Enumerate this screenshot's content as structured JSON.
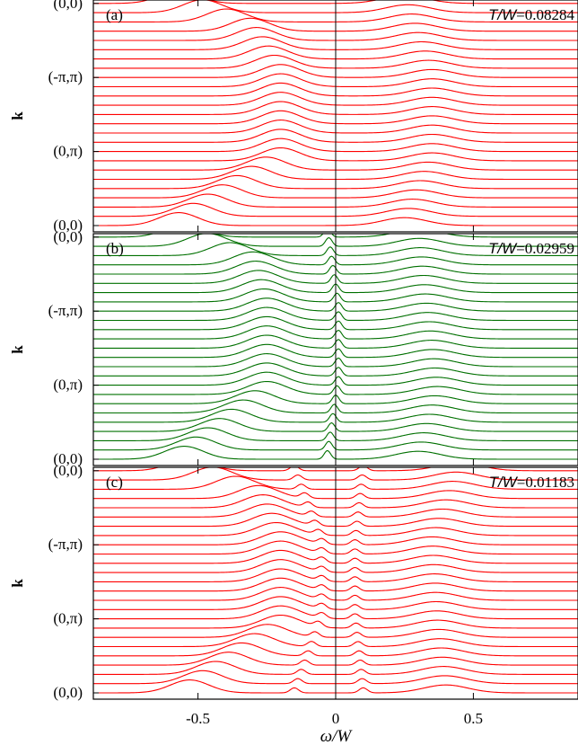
{
  "chart_data": [
    {
      "type": "line",
      "panel_label": "(a)",
      "temperature": {
        "symbol": "T/W",
        "value": "0.08284"
      },
      "color": "#ff0000",
      "ylabel": "k",
      "k_ticks": [
        "(0,0)",
        "(-π,π)",
        "(0,π)",
        "(0,0)"
      ],
      "x_ticks": [],
      "xlim": [
        -0.88,
        0.88
      ],
      "n_curves": 25,
      "peaks": [
        {
          "label": "lower band",
          "omega_path": [
            [
              0,
              -0.57
            ],
            [
              7,
              -0.2
            ],
            [
              16,
              -0.2
            ],
            [
              21,
              -0.31
            ],
            [
              24,
              -0.57
            ]
          ],
          "height": 0.9,
          "width": 0.07
        },
        {
          "label": "upper band",
          "omega_path": [
            [
              0,
              0.25
            ],
            [
              7,
              0.35
            ],
            [
              16,
              0.35
            ],
            [
              24,
              0.25
            ]
          ],
          "height": 0.55,
          "width": 0.08
        }
      ]
    },
    {
      "type": "line",
      "panel_label": "(b)",
      "temperature": {
        "symbol": "T/W",
        "value": "0.02959"
      },
      "color": "#007000",
      "ylabel": "k",
      "k_ticks": [
        "(0,0)",
        "(-π,π)",
        "(0,π)",
        "(0,0)"
      ],
      "x_ticks": [],
      "xlim": [
        -0.88,
        0.88
      ],
      "n_curves": 25,
      "peaks": [
        {
          "label": "lower band",
          "omega_path": [
            [
              0,
              -0.55
            ],
            [
              7,
              -0.25
            ],
            [
              16,
              -0.25
            ],
            [
              21,
              -0.3
            ],
            [
              24,
              -0.55
            ]
          ],
          "height": 0.9,
          "width": 0.07
        },
        {
          "label": "upper band",
          "omega_path": [
            [
              0,
              0.3
            ],
            [
              7,
              0.37
            ],
            [
              16,
              0.33
            ],
            [
              24,
              0.3
            ]
          ],
          "height": 0.55,
          "width": 0.08
        },
        {
          "label": "quasiparticle peak",
          "omega_path": [
            [
              0,
              -0.03
            ],
            [
              8,
              0.01
            ],
            [
              16,
              0.01
            ],
            [
              24,
              -0.03
            ]
          ],
          "height": 0.6,
          "width": 0.012
        }
      ]
    },
    {
      "type": "line",
      "panel_label": "(c)",
      "temperature": {
        "symbol": "T/W",
        "value": "0.01183"
      },
      "color": "#ff0000",
      "ylabel": "k",
      "k_ticks": [
        "(0,0)",
        "(-π,π)",
        "(0,π)",
        "(0,0)"
      ],
      "x_ticks": [
        "-0.5",
        "0",
        "0.5"
      ],
      "xlabel": "ω/W",
      "xlim": [
        -0.88,
        0.88
      ],
      "n_curves": 25,
      "peaks": [
        {
          "label": "lower band",
          "omega_path": [
            [
              0,
              -0.53
            ],
            [
              7,
              -0.2
            ],
            [
              16,
              -0.2
            ],
            [
              21,
              -0.28
            ],
            [
              24,
              -0.53
            ]
          ],
          "height": 0.9,
          "width": 0.07
        },
        {
          "label": "upper band",
          "omega_path": [
            [
              0,
              0.4
            ],
            [
              7,
              0.37
            ],
            [
              16,
              0.35
            ],
            [
              24,
              0.45
            ]
          ],
          "height": 0.55,
          "width": 0.08
        },
        {
          "label": "inner peak left",
          "omega_path": [
            [
              0,
              -0.15
            ],
            [
              8,
              -0.05
            ],
            [
              16,
              -0.05
            ],
            [
              24,
              -0.15
            ]
          ],
          "height": 0.35,
          "width": 0.015
        },
        {
          "label": "inner peak right",
          "omega_path": [
            [
              0,
              0.1
            ],
            [
              8,
              0.07
            ],
            [
              16,
              0.07
            ],
            [
              24,
              0.1
            ]
          ],
          "height": 0.35,
          "width": 0.015
        }
      ]
    }
  ]
}
